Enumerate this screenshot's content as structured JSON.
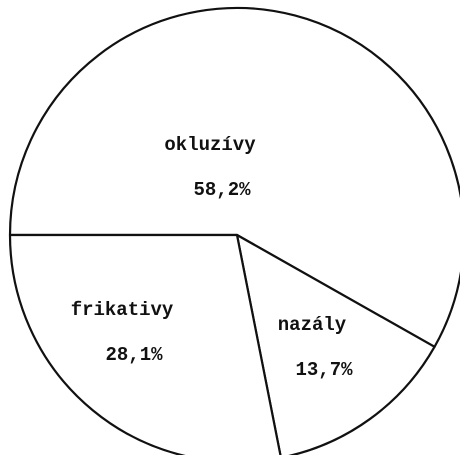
{
  "chart_data": {
    "type": "pie",
    "categories": [
      "okluzívy",
      "nazály",
      "frikativy"
    ],
    "values": [
      58.2,
      13.7,
      28.1
    ],
    "value_labels": [
      "58,2%",
      "13,7%",
      "28,1%"
    ]
  }
}
